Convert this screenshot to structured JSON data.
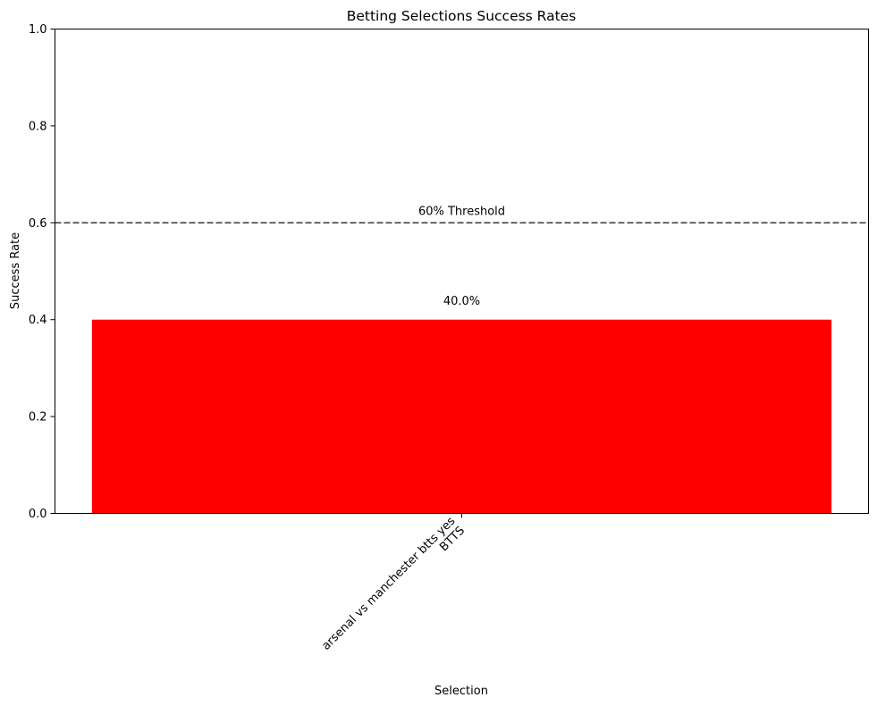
{
  "chart_data": {
    "type": "bar",
    "title": "Betting Selections Success Rates",
    "xlabel": "Selection",
    "ylabel": "Success Rate",
    "categories": [
      [
        "arsenal vs manchester btts yes",
        "BTTS"
      ]
    ],
    "values": [
      0.4
    ],
    "value_labels": [
      "40.0%"
    ],
    "bar_colors": [
      "#ff0000"
    ],
    "ylim": [
      0,
      1
    ],
    "yticks": [
      {
        "value": 0.0,
        "label": "0.0"
      },
      {
        "value": 0.2,
        "label": "0.2"
      },
      {
        "value": 0.4,
        "label": "0.4"
      },
      {
        "value": 0.6,
        "label": "0.6"
      },
      {
        "value": 0.8,
        "label": "0.8"
      },
      {
        "value": 1.0,
        "label": "1.0"
      }
    ],
    "threshold": {
      "value": 0.6,
      "label": "60% Threshold",
      "color": "#404040",
      "style": "dashed"
    },
    "grid": false,
    "legend": "none"
  }
}
